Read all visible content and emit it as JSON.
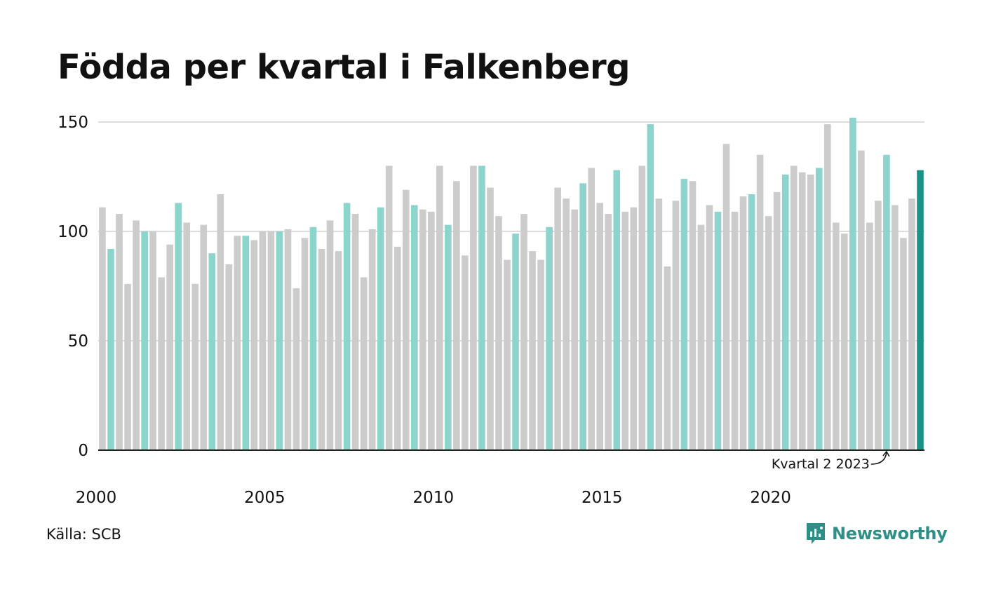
{
  "chart_data": {
    "type": "bar",
    "title": "Födda per kvartal i Falkenberg",
    "xlabel": "",
    "ylabel": "",
    "ylim": [
      0,
      150
    ],
    "yticks": [
      0,
      50,
      100,
      150
    ],
    "xtick_labels": [
      "2000",
      "2005",
      "2010",
      "2015",
      "2020"
    ],
    "grid": true,
    "highlight_rule": "Kvartal 2 bars highlighted; latest bar emphasized",
    "start_year": 2000,
    "values": [
      111,
      92,
      108,
      76,
      105,
      100,
      100,
      79,
      94,
      113,
      104,
      76,
      103,
      90,
      117,
      85,
      98,
      98,
      96,
      100,
      100,
      100,
      101,
      74,
      97,
      102,
      92,
      105,
      91,
      113,
      108,
      79,
      101,
      111,
      130,
      93,
      119,
      112,
      110,
      109,
      130,
      103,
      123,
      89,
      130,
      130,
      120,
      107,
      87,
      99,
      108,
      91,
      87,
      102,
      120,
      115,
      110,
      122,
      129,
      113,
      108,
      128,
      109,
      111,
      130,
      149,
      115,
      84,
      114,
      124,
      123,
      103,
      112,
      109,
      140,
      109,
      116,
      117,
      135,
      107,
      118,
      126,
      130,
      127,
      126,
      129,
      149,
      104,
      99,
      152,
      137,
      104,
      114,
      135,
      112,
      97,
      115,
      128
    ],
    "annotation": "Kvartal 2 2023"
  },
  "colors": {
    "other_quarters": "#cccccc",
    "q2": "#8cd4cc",
    "latest": "#1b9488",
    "grid": "#dddddd",
    "axis": "#222222",
    "brand": "#2e8f86"
  },
  "footer": {
    "source": "Källa: SCB",
    "brand": "Newsworthy",
    "brand_icon": "bar-chart-speech-bubble-icon"
  }
}
